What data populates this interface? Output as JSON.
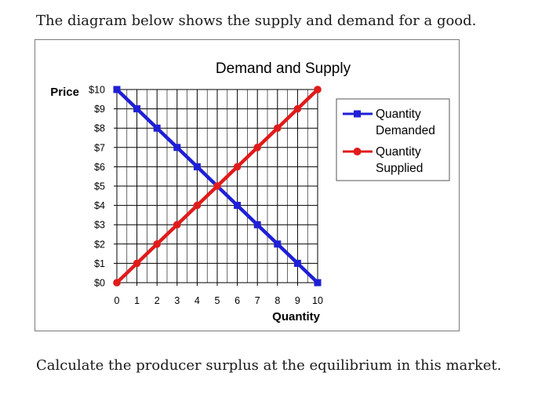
{
  "question": {
    "intro": "The diagram below shows the supply and demand for a good.",
    "prompt": "Calculate the producer surplus at the equilibrium in this market."
  },
  "chart_data": {
    "type": "line",
    "title": "Demand and Supply",
    "xlabel": "Quantity",
    "ylabel": "Price",
    "x_ticks": [
      "0",
      "1",
      "2",
      "3",
      "4",
      "5",
      "6",
      "7",
      "8",
      "9",
      "10"
    ],
    "y_ticks": [
      "$0",
      "$1",
      "$2",
      "$3",
      "$4",
      "$5",
      "$6",
      "$7",
      "$8",
      "$9",
      "$10"
    ],
    "xlim": [
      0,
      10
    ],
    "ylim": [
      0,
      10
    ],
    "grid": true,
    "legend_position": "right",
    "x": [
      0,
      1,
      2,
      3,
      4,
      5,
      6,
      7,
      8,
      9,
      10
    ],
    "series": [
      {
        "name": "Quantity Demanded",
        "legend_lines": [
          "Quantity",
          "Demanded"
        ],
        "color": "#1f1fd6",
        "marker": "square",
        "values": [
          10,
          9,
          8,
          7,
          6,
          5,
          4,
          3,
          2,
          1,
          0
        ]
      },
      {
        "name": "Quantity Supplied",
        "legend_lines": [
          "Quantity",
          "Supplied"
        ],
        "color": "#e01b1b",
        "marker": "circle",
        "values": [
          0,
          1,
          2,
          3,
          4,
          5,
          6,
          7,
          8,
          9,
          10
        ]
      }
    ]
  }
}
